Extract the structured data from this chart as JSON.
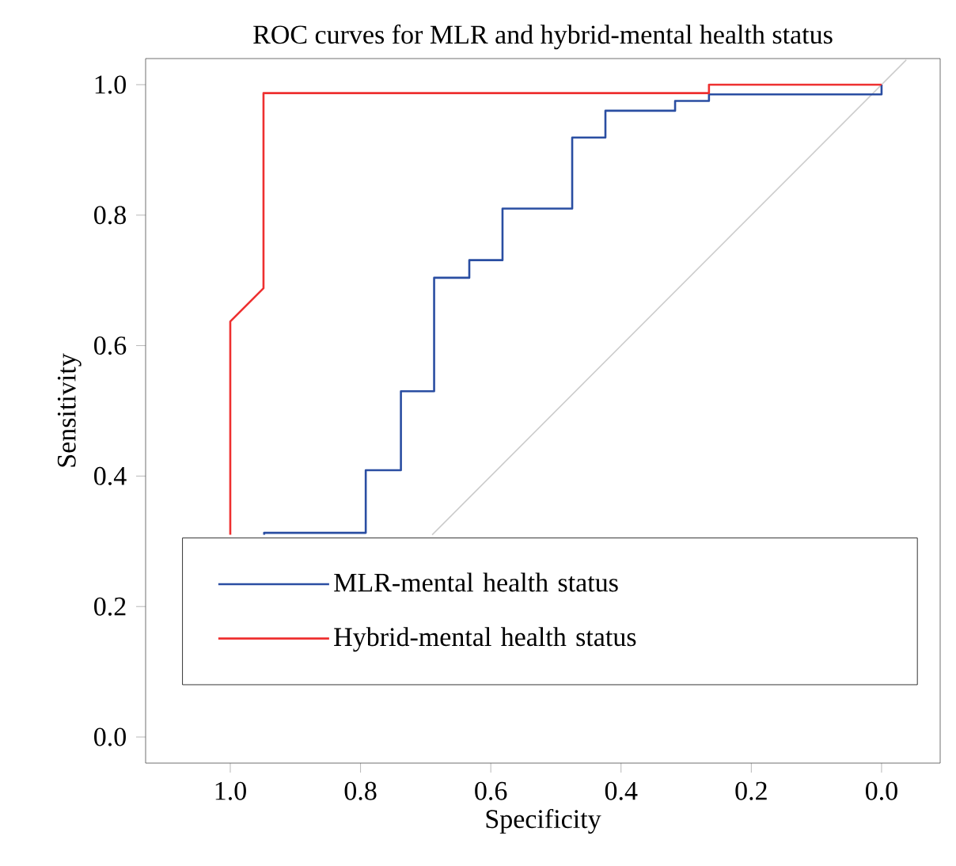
{
  "chart_data": {
    "type": "line",
    "title": "ROC curves for MLR and hybrid-mental health status",
    "xlabel": "Specificity",
    "ylabel": "Sensitivity",
    "xlim": [
      1.13,
      -0.09
    ],
    "ylim": [
      -0.04,
      1.04
    ],
    "xticks": [
      {
        "value": 1,
        "label": "1.0"
      },
      0.8,
      0.6,
      0.4,
      0.2,
      {
        "value": 0,
        "label": "0.0"
      }
    ],
    "yticks": [
      {
        "value": 0,
        "label": "0.0"
      },
      0.2,
      0.4,
      0.6,
      0.8,
      {
        "value": 1,
        "label": "1.0"
      }
    ],
    "series": [
      {
        "name": "MLR-mental health status",
        "color": "#2a4ea2",
        "x": [
          0.948,
          0.948,
          0.792,
          0.792,
          0.738,
          0.738,
          0.687,
          0.687,
          0.633,
          0.633,
          0.582,
          0.582,
          0.475,
          0.475,
          0.424,
          0.424,
          0.317,
          0.317,
          0.265,
          0.265,
          0.0,
          0.0
        ],
        "values": [
          0.31,
          0.313,
          0.313,
          0.409,
          0.409,
          0.53,
          0.53,
          0.704,
          0.704,
          0.731,
          0.731,
          0.81,
          0.81,
          0.919,
          0.919,
          0.96,
          0.96,
          0.975,
          0.975,
          0.985,
          0.985,
          1.0
        ]
      },
      {
        "name": "Hybrid-mental health status",
        "color": "#ee3030",
        "x": [
          1.0,
          1.0,
          0.949,
          0.949,
          0.265,
          0.265,
          0.0
        ],
        "values": [
          0.31,
          0.637,
          0.688,
          0.987,
          0.987,
          1.0,
          1.0
        ]
      },
      {
        "color": "#cccccc",
        "x": [
          0.69,
          -0.038
        ],
        "values": [
          0.31,
          1.038
        ]
      }
    ],
    "marker": "none",
    "line_style": "solid",
    "grid": false,
    "legend": "bottom"
  }
}
